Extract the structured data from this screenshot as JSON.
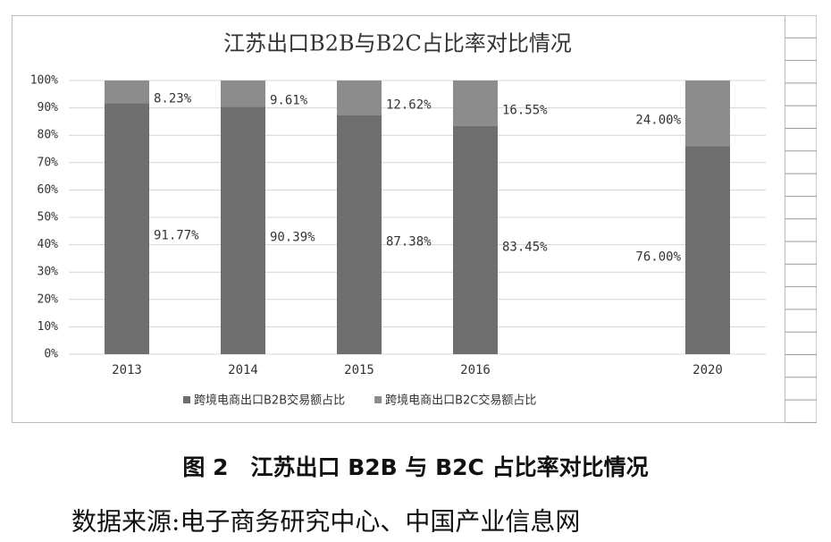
{
  "chart_data": {
    "type": "stacked_bar",
    "title": "江苏出口B2B与B2C占比率对比情况",
    "categories": [
      "2013",
      "2014",
      "2015",
      "2016",
      null,
      "2020"
    ],
    "series": [
      {
        "name": "跨境电商出口B2B交易额占比",
        "color": "#6e6e6e",
        "values": [
          91.77,
          90.39,
          87.38,
          83.45,
          null,
          76.0
        ],
        "value_labels": [
          "91.77%",
          "90.39%",
          "87.38%",
          "83.45%",
          null,
          "76.00%"
        ]
      },
      {
        "name": "跨境电商出口B2C交易额占比",
        "color": "#8c8c8c",
        "values": [
          8.23,
          9.61,
          12.62,
          16.55,
          null,
          24.0
        ],
        "value_labels": [
          "8.23%",
          "9.61%",
          "12.62%",
          "16.55%",
          null,
          "24.00%"
        ]
      }
    ],
    "ylim": [
      0,
      100
    ],
    "yticks": [
      {
        "value": 0,
        "label": "0%"
      },
      {
        "value": 10,
        "label": "10%"
      },
      {
        "value": 20,
        "label": "20%"
      },
      {
        "value": 30,
        "label": "30%"
      },
      {
        "value": 40,
        "label": "40%"
      },
      {
        "value": 50,
        "label": "50%"
      },
      {
        "value": 60,
        "label": "60%"
      },
      {
        "value": 70,
        "label": "70%"
      },
      {
        "value": 80,
        "label": "80%"
      },
      {
        "value": 90,
        "label": "90%"
      },
      {
        "value": 100,
        "label": "100%"
      }
    ],
    "grid": true,
    "legend": "bottom"
  },
  "caption": "图 2　江苏出口 B2B 与 B2C 占比率对比情况",
  "source": "数据来源:电子商务研究中心、中国产业信息网"
}
